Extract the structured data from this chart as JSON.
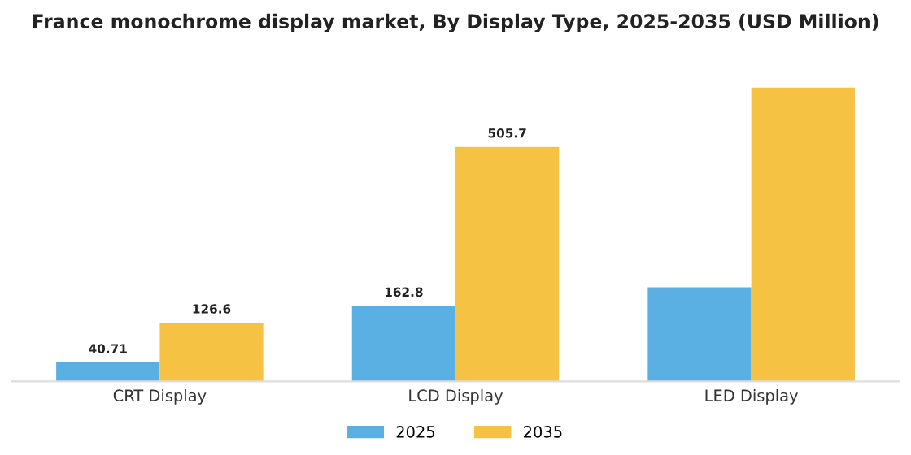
{
  "chart_data": {
    "type": "bar",
    "title": "France monochrome display market, By Display Type, 2025-2035 (USD Million)",
    "categories": [
      "CRT Display",
      "LCD Display",
      "LED Display"
    ],
    "series": [
      {
        "name": "2025",
        "color": "#5aafe3",
        "values": [
          40.71,
          162.8,
          203
        ],
        "value_labels": [
          "40.71",
          "162.8",
          null
        ]
      },
      {
        "name": "2035",
        "color": "#f6c244",
        "values": [
          126.6,
          505.7,
          634
        ],
        "value_labels": [
          "126.6",
          "505.7",
          null
        ]
      }
    ],
    "tick_labels": "x",
    "grid": false,
    "legend": "bottom"
  }
}
